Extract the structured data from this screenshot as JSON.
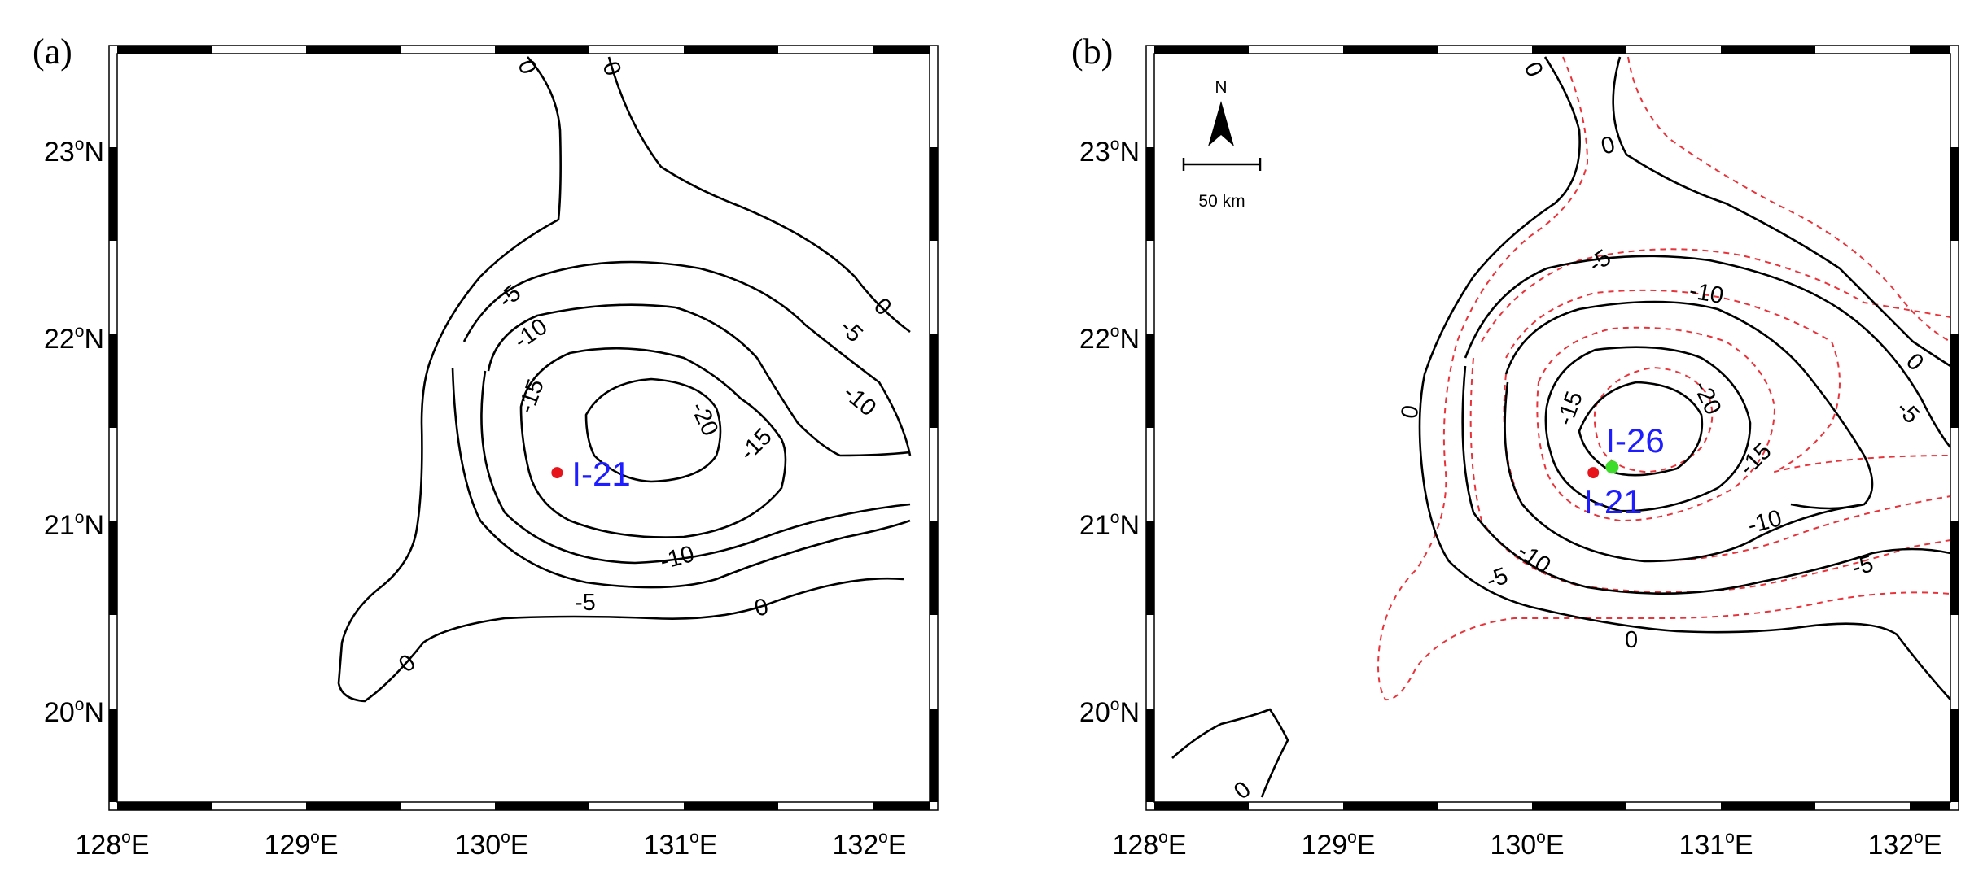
{
  "panels": [
    {
      "id": "a",
      "letter": "(a)",
      "lat_ticks": [
        {
          "num": "23",
          "sup": "o",
          "suffix": "N"
        },
        {
          "num": "22",
          "sup": "o",
          "suffix": "N"
        },
        {
          "num": "21",
          "sup": "o",
          "suffix": "N"
        },
        {
          "num": "20",
          "sup": "o",
          "suffix": "N"
        }
      ],
      "lon_ticks": [
        {
          "num": "128",
          "sup": "o",
          "suffix": "E"
        },
        {
          "num": "129",
          "sup": "o",
          "suffix": "E"
        },
        {
          "num": "130",
          "sup": "o",
          "suffix": "E"
        },
        {
          "num": "131",
          "sup": "o",
          "suffix": "E"
        },
        {
          "num": "132",
          "sup": "o",
          "suffix": "E"
        }
      ],
      "contour_labels": [
        "0",
        "0",
        "-5",
        "-10",
        "-15",
        "-20",
        "0",
        "-5",
        "-10",
        "-15",
        "-10",
        "-5",
        "0",
        "0"
      ],
      "site": {
        "name": "I-21",
        "lon": 130.35,
        "lat": 21.28,
        "color": "#e8141b",
        "label_color": "#1d1dff"
      }
    },
    {
      "id": "b",
      "letter": "(b)",
      "lat_ticks": [
        {
          "num": "23",
          "sup": "o",
          "suffix": "N"
        },
        {
          "num": "22",
          "sup": "o",
          "suffix": "N"
        },
        {
          "num": "21",
          "sup": "o",
          "suffix": "N"
        },
        {
          "num": "20",
          "sup": "o",
          "suffix": "N"
        }
      ],
      "lon_ticks": [
        {
          "num": "128",
          "sup": "o",
          "suffix": "E"
        },
        {
          "num": "129",
          "sup": "o",
          "suffix": "E"
        },
        {
          "num": "130",
          "sup": "o",
          "suffix": "E"
        },
        {
          "num": "131",
          "sup": "o",
          "suffix": "E"
        },
        {
          "num": "132",
          "sup": "o",
          "suffix": "E"
        }
      ],
      "contour_labels": [
        "0",
        "0",
        "-5",
        "-10",
        "-20",
        "-15",
        "0",
        "-5",
        "0",
        "-15",
        "-10",
        "-10",
        "-5",
        "-5",
        "0",
        "0"
      ],
      "sites": [
        {
          "name": "I-26",
          "lon": 130.45,
          "lat": 21.31,
          "color": "#3ddc2a",
          "label_color": "#1d1dff"
        },
        {
          "name": "I-21",
          "lon": 130.35,
          "lat": 21.28,
          "color": "#e8141b",
          "label_color": "#1d1dff"
        }
      ],
      "north_arrow": {
        "label": "N"
      },
      "scale_bar": {
        "label": "50 km"
      }
    }
  ],
  "colors": {
    "contour": "#000000",
    "dashed_contour": "#e8333a",
    "frame": "#000000"
  }
}
